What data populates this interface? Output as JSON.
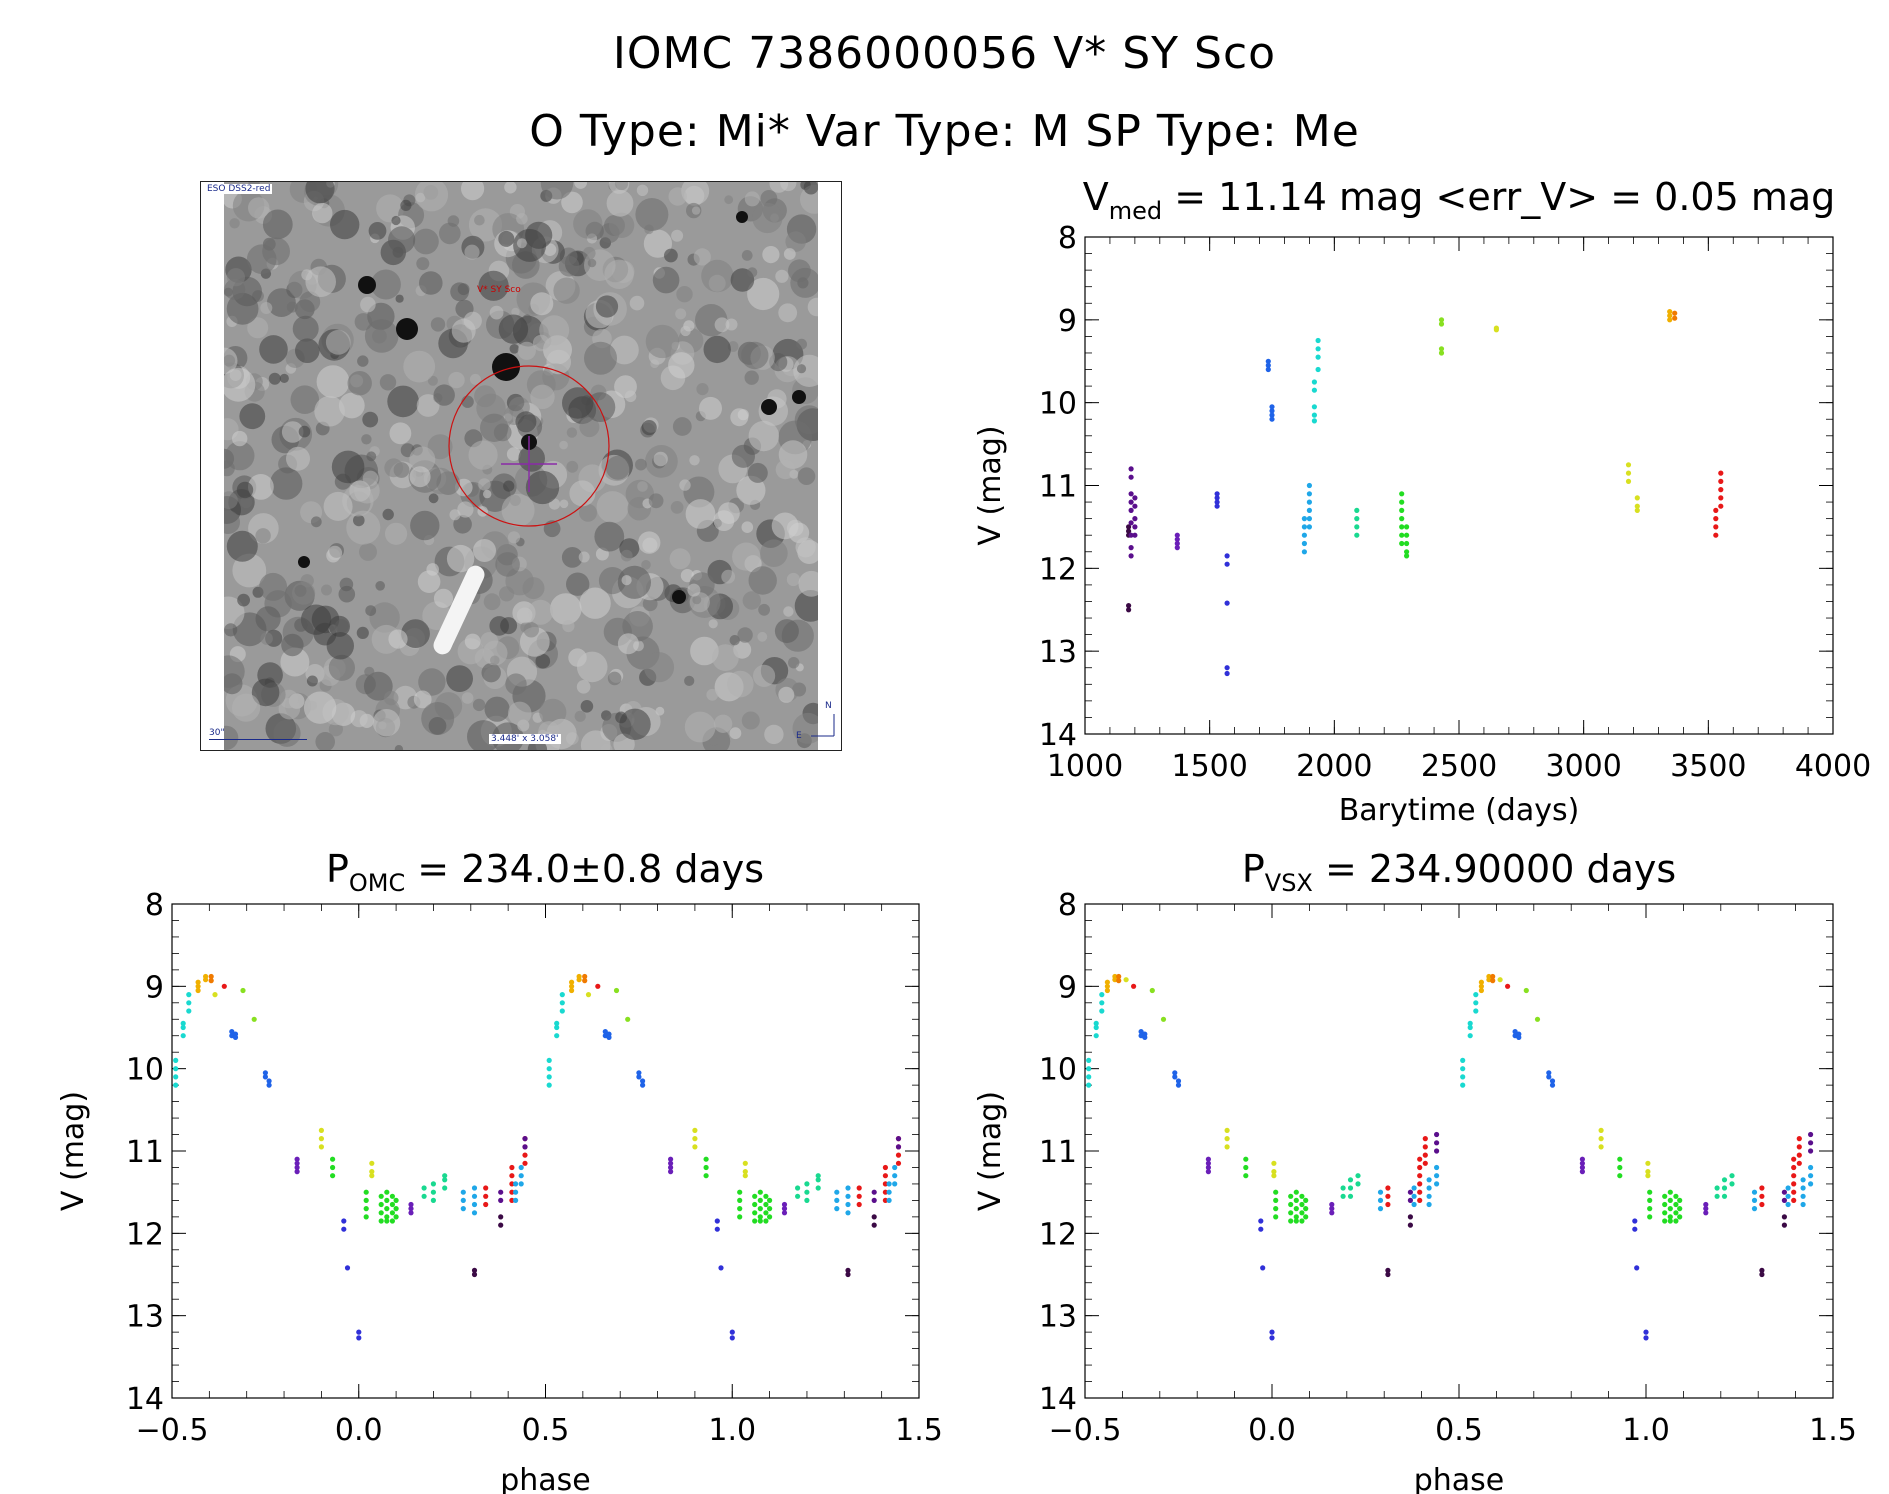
{
  "header": {
    "line1": "IOMC 7386000056   V* SY Sco",
    "line2": "O Type: Mi*  Var Type: M  SP Type: Me"
  },
  "finder": {
    "survey_label": "ESO DSS2-red",
    "target_label": "V* SY Sco",
    "scale_label": "30\"",
    "fov_label": "3.448' x 3.058'",
    "compass_n": "N",
    "compass_e": "E"
  },
  "colors": {
    "palette": [
      "#3b0a45",
      "#5a0f8c",
      "#6a1fb8",
      "#3030d8",
      "#1f63e8",
      "#1fa7e8",
      "#19d9d0",
      "#19d990",
      "#22dd22",
      "#88e020",
      "#d8e020",
      "#f0b000",
      "#f07a00",
      "#e81818"
    ]
  },
  "chart_data": [
    {
      "id": "lightcurve",
      "type": "scatter",
      "title": "V_med = 11.14 mag <err_V> = 0.05 mag",
      "title_parts": {
        "main": "V",
        "sub": "med",
        "rest": " = 11.14 mag <err_V> = 0.05 mag"
      },
      "xlabel": "Barytime (days)",
      "ylabel": "V (mag)",
      "xlim": [
        1000,
        4000
      ],
      "ylim": [
        8,
        14
      ],
      "y_inverted": true,
      "xticks": [
        1000,
        1500,
        2000,
        2500,
        3000,
        3500,
        4000
      ],
      "yticks": [
        8,
        9,
        10,
        11,
        12,
        13,
        14
      ],
      "groups": [
        {
          "c": 0,
          "x": 1175,
          "y": [
            11.5,
            11.55,
            11.6,
            12.45,
            12.5
          ]
        },
        {
          "c": 1,
          "x": 1185,
          "y": [
            10.8,
            10.9,
            11.1,
            11.2,
            11.3,
            11.45,
            11.6,
            11.75,
            11.85
          ]
        },
        {
          "c": 1,
          "x": 1200,
          "y": [
            11.15,
            11.25,
            11.4,
            11.5,
            11.6
          ]
        },
        {
          "c": 2,
          "x": 1370,
          "y": [
            11.6,
            11.65,
            11.7,
            11.75
          ]
        },
        {
          "c": 3,
          "x": 1530,
          "y": [
            11.1,
            11.15,
            11.2,
            11.25
          ]
        },
        {
          "c": 3,
          "x": 1570,
          "y": [
            11.85,
            11.95,
            12.42,
            13.2,
            13.27
          ]
        },
        {
          "c": 4,
          "x": 1735,
          "y": [
            9.5,
            9.55,
            9.6
          ]
        },
        {
          "c": 4,
          "x": 1750,
          "y": [
            10.05,
            10.1,
            10.15,
            10.2
          ]
        },
        {
          "c": 5,
          "x": 1880,
          "y": [
            11.4,
            11.5,
            11.6,
            11.7,
            11.8
          ]
        },
        {
          "c": 5,
          "x": 1900,
          "y": [
            11.0,
            11.1,
            11.2,
            11.3,
            11.4,
            11.5
          ]
        },
        {
          "c": 6,
          "x": 1920,
          "y": [
            9.75,
            9.85,
            10.05,
            10.15,
            10.22
          ]
        },
        {
          "c": 6,
          "x": 1935,
          "y": [
            9.25,
            9.35,
            9.45,
            9.6
          ]
        },
        {
          "c": 7,
          "x": 2090,
          "y": [
            11.3,
            11.4,
            11.5,
            11.6
          ]
        },
        {
          "c": 8,
          "x": 2270,
          "y": [
            11.1,
            11.2,
            11.3,
            11.4,
            11.5,
            11.6,
            11.7
          ]
        },
        {
          "c": 8,
          "x": 2290,
          "y": [
            11.5,
            11.6,
            11.7,
            11.8,
            11.85
          ]
        },
        {
          "c": 9,
          "x": 2430,
          "y": [
            9.0,
            9.05,
            9.35,
            9.4
          ]
        },
        {
          "c": 10,
          "x": 2650,
          "y": [
            9.1,
            9.12
          ]
        },
        {
          "c": 10,
          "x": 3180,
          "y": [
            10.75,
            10.85,
            10.95
          ]
        },
        {
          "c": 10,
          "x": 3215,
          "y": [
            11.15,
            11.25,
            11.3
          ]
        },
        {
          "c": 11,
          "x": 3345,
          "y": [
            8.9,
            8.95,
            9.0
          ]
        },
        {
          "c": 12,
          "x": 3365,
          "y": [
            8.92,
            8.98
          ]
        },
        {
          "c": 13,
          "x": 3530,
          "y": [
            11.3,
            11.4,
            11.5,
            11.6
          ]
        },
        {
          "c": 13,
          "x": 3550,
          "y": [
            10.85,
            10.95,
            11.05,
            11.15,
            11.25
          ]
        }
      ]
    },
    {
      "id": "phase_omc",
      "type": "scatter",
      "title": "P_OMC = 234.0±0.8 days",
      "title_parts": {
        "main": "P",
        "sub": "OMC",
        "rest": " = 234.0±0.8 days"
      },
      "xlabel": "phase",
      "ylabel": "V (mag)",
      "xlim": [
        -0.5,
        1.5
      ],
      "ylim": [
        8,
        14
      ],
      "y_inverted": true,
      "xticks": [
        -0.5,
        0.0,
        0.5,
        1.0,
        1.5
      ],
      "xticklabels": [
        "−0.5",
        "0.0",
        "0.5",
        "1.0",
        "1.5"
      ],
      "yticks": [
        8,
        9,
        10,
        11,
        12,
        13,
        14
      ],
      "groups": [
        {
          "c": 6,
          "x": -0.49,
          "y": [
            9.9,
            10.0,
            10.1,
            10.2
          ]
        },
        {
          "c": 6,
          "x": -0.47,
          "y": [
            9.6,
            9.5,
            9.45
          ]
        },
        {
          "c": 6,
          "x": -0.455,
          "y": [
            9.3,
            9.2,
            9.1
          ]
        },
        {
          "c": 11,
          "x": -0.43,
          "y": [
            8.95,
            9.0,
            9.05
          ]
        },
        {
          "c": 11,
          "x": -0.41,
          "y": [
            8.88,
            8.92
          ]
        },
        {
          "c": 12,
          "x": -0.395,
          "y": [
            8.88,
            8.93
          ]
        },
        {
          "c": 10,
          "x": -0.385,
          "y": [
            9.1
          ]
        },
        {
          "c": 13,
          "x": -0.36,
          "y": [
            9.0
          ]
        },
        {
          "c": 4,
          "x": -0.34,
          "y": [
            9.55,
            9.6
          ]
        },
        {
          "c": 4,
          "x": -0.33,
          "y": [
            9.58,
            9.62
          ]
        },
        {
          "c": 9,
          "x": -0.31,
          "y": [
            9.05
          ]
        },
        {
          "c": 9,
          "x": -0.28,
          "y": [
            9.4
          ]
        },
        {
          "c": 4,
          "x": -0.25,
          "y": [
            10.05,
            10.1
          ]
        },
        {
          "c": 4,
          "x": -0.24,
          "y": [
            10.15,
            10.2
          ]
        },
        {
          "c": 2,
          "x": -0.165,
          "y": [
            11.1,
            11.15,
            11.2,
            11.25
          ]
        },
        {
          "c": 10,
          "x": -0.1,
          "y": [
            10.75,
            10.85,
            10.95
          ]
        },
        {
          "c": 8,
          "x": -0.07,
          "y": [
            11.1,
            11.2,
            11.3
          ]
        },
        {
          "c": 3,
          "x": -0.04,
          "y": [
            11.85,
            11.95
          ]
        },
        {
          "c": 3,
          "x": -0.03,
          "y": [
            12.42
          ]
        },
        {
          "c": 3,
          "x": 0.0,
          "y": [
            13.2,
            13.27
          ]
        },
        {
          "c": 8,
          "x": 0.02,
          "y": [
            11.5,
            11.6,
            11.7,
            11.8
          ]
        },
        {
          "c": 10,
          "x": 0.035,
          "y": [
            11.15,
            11.25,
            11.3
          ]
        },
        {
          "c": 8,
          "x": 0.06,
          "y": [
            11.55,
            11.65,
            11.75,
            11.85
          ]
        },
        {
          "c": 8,
          "x": 0.075,
          "y": [
            11.5,
            11.6,
            11.7,
            11.8,
            11.85
          ]
        },
        {
          "c": 8,
          "x": 0.09,
          "y": [
            11.55,
            11.65,
            11.75,
            11.85
          ]
        },
        {
          "c": 8,
          "x": 0.1,
          "y": [
            11.6,
            11.7,
            11.8
          ]
        },
        {
          "c": 2,
          "x": 0.14,
          "y": [
            11.65,
            11.7,
            11.75
          ]
        },
        {
          "c": 7,
          "x": 0.175,
          "y": [
            11.45,
            11.55
          ]
        },
        {
          "c": 7,
          "x": 0.2,
          "y": [
            11.4,
            11.5,
            11.6
          ]
        },
        {
          "c": 7,
          "x": 0.23,
          "y": [
            11.3,
            11.35,
            11.45
          ]
        },
        {
          "c": 0,
          "x": 0.31,
          "y": [
            12.45,
            12.5
          ]
        },
        {
          "c": 5,
          "x": 0.28,
          "y": [
            11.5,
            11.6,
            11.7
          ]
        },
        {
          "c": 5,
          "x": 0.31,
          "y": [
            11.45,
            11.55,
            11.65,
            11.75
          ]
        },
        {
          "c": 13,
          "x": 0.34,
          "y": [
            11.45,
            11.55,
            11.65
          ]
        },
        {
          "c": 0,
          "x": 0.38,
          "y": [
            11.8,
            11.9
          ]
        },
        {
          "c": 1,
          "x": 0.38,
          "y": [
            11.5,
            11.6
          ]
        },
        {
          "c": 13,
          "x": 0.41,
          "y": [
            11.2,
            11.3,
            11.4,
            11.5,
            11.6
          ]
        },
        {
          "c": 5,
          "x": 0.42,
          "y": [
            11.4,
            11.5,
            11.6
          ]
        },
        {
          "c": 5,
          "x": 0.435,
          "y": [
            11.2,
            11.3,
            11.4
          ]
        },
        {
          "c": 13,
          "x": 0.445,
          "y": [
            10.85,
            10.95,
            11.05,
            11.15
          ]
        },
        {
          "c": 1,
          "x": 0.445,
          "y": [
            10.85,
            10.95
          ]
        }
      ],
      "repeat_offset": 1.0
    },
    {
      "id": "phase_vsx",
      "type": "scatter",
      "title": "P_VSX = 234.90000 days",
      "title_parts": {
        "main": "P",
        "sub": "VSX",
        "rest": " = 234.90000 days"
      },
      "xlabel": "phase",
      "ylabel": "V (mag)",
      "xlim": [
        -0.5,
        1.5
      ],
      "ylim": [
        8,
        14
      ],
      "y_inverted": true,
      "xticks": [
        -0.5,
        0.0,
        0.5,
        1.0,
        1.5
      ],
      "xticklabels": [
        "−0.5",
        "0.0",
        "0.5",
        "1.0",
        "1.5"
      ],
      "yticks": [
        8,
        9,
        10,
        11,
        12,
        13,
        14
      ],
      "groups": [
        {
          "c": 6,
          "x": -0.49,
          "y": [
            9.9,
            10.0,
            10.1,
            10.2
          ]
        },
        {
          "c": 6,
          "x": -0.47,
          "y": [
            9.6,
            9.5,
            9.45
          ]
        },
        {
          "c": 6,
          "x": -0.455,
          "y": [
            9.3,
            9.2,
            9.1
          ]
        },
        {
          "c": 11,
          "x": -0.44,
          "y": [
            8.95,
            9.0,
            9.05
          ]
        },
        {
          "c": 11,
          "x": -0.42,
          "y": [
            8.88,
            8.92
          ]
        },
        {
          "c": 12,
          "x": -0.41,
          "y": [
            8.88,
            8.93
          ]
        },
        {
          "c": 10,
          "x": -0.39,
          "y": [
            8.92
          ]
        },
        {
          "c": 13,
          "x": -0.37,
          "y": [
            9.0
          ]
        },
        {
          "c": 4,
          "x": -0.35,
          "y": [
            9.55,
            9.6
          ]
        },
        {
          "c": 4,
          "x": -0.34,
          "y": [
            9.58,
            9.62
          ]
        },
        {
          "c": 9,
          "x": -0.32,
          "y": [
            9.05
          ]
        },
        {
          "c": 9,
          "x": -0.29,
          "y": [
            9.4
          ]
        },
        {
          "c": 4,
          "x": -0.26,
          "y": [
            10.05,
            10.1
          ]
        },
        {
          "c": 4,
          "x": -0.25,
          "y": [
            10.15,
            10.2
          ]
        },
        {
          "c": 2,
          "x": -0.17,
          "y": [
            11.1,
            11.15,
            11.2,
            11.25
          ]
        },
        {
          "c": 10,
          "x": -0.12,
          "y": [
            10.75,
            10.85,
            10.95
          ]
        },
        {
          "c": 8,
          "x": -0.07,
          "y": [
            11.1,
            11.2,
            11.3
          ]
        },
        {
          "c": 3,
          "x": -0.03,
          "y": [
            11.85,
            11.95
          ]
        },
        {
          "c": 3,
          "x": -0.025,
          "y": [
            12.42
          ]
        },
        {
          "c": 3,
          "x": 0.0,
          "y": [
            13.2,
            13.27
          ]
        },
        {
          "c": 8,
          "x": 0.01,
          "y": [
            11.5,
            11.6,
            11.7,
            11.8
          ]
        },
        {
          "c": 10,
          "x": 0.005,
          "y": [
            11.15,
            11.25,
            11.3
          ]
        },
        {
          "c": 8,
          "x": 0.05,
          "y": [
            11.55,
            11.65,
            11.75,
            11.85
          ]
        },
        {
          "c": 8,
          "x": 0.065,
          "y": [
            11.5,
            11.6,
            11.7,
            11.8,
            11.85
          ]
        },
        {
          "c": 8,
          "x": 0.08,
          "y": [
            11.55,
            11.65,
            11.75,
            11.85
          ]
        },
        {
          "c": 8,
          "x": 0.09,
          "y": [
            11.6,
            11.7,
            11.8
          ]
        },
        {
          "c": 2,
          "x": 0.16,
          "y": [
            11.65,
            11.7,
            11.75
          ]
        },
        {
          "c": 7,
          "x": 0.19,
          "y": [
            11.45,
            11.55
          ]
        },
        {
          "c": 7,
          "x": 0.21,
          "y": [
            11.35,
            11.45,
            11.55
          ]
        },
        {
          "c": 7,
          "x": 0.23,
          "y": [
            11.3,
            11.4
          ]
        },
        {
          "c": 0,
          "x": 0.31,
          "y": [
            12.45,
            12.5
          ]
        },
        {
          "c": 5,
          "x": 0.29,
          "y": [
            11.5,
            11.6,
            11.7
          ]
        },
        {
          "c": 13,
          "x": 0.31,
          "y": [
            11.45,
            11.55,
            11.65
          ]
        },
        {
          "c": 0,
          "x": 0.37,
          "y": [
            11.8,
            11.9
          ]
        },
        {
          "c": 1,
          "x": 0.37,
          "y": [
            11.5,
            11.6
          ]
        },
        {
          "c": 5,
          "x": 0.38,
          "y": [
            11.45,
            11.55,
            11.65
          ]
        },
        {
          "c": 13,
          "x": 0.395,
          "y": [
            11.1,
            11.2,
            11.3,
            11.4,
            11.5,
            11.6
          ]
        },
        {
          "c": 13,
          "x": 0.41,
          "y": [
            10.85,
            10.95,
            11.05,
            11.15
          ]
        },
        {
          "c": 5,
          "x": 0.42,
          "y": [
            11.35,
            11.45,
            11.55,
            11.65
          ]
        },
        {
          "c": 5,
          "x": 0.44,
          "y": [
            11.2,
            11.3,
            11.4
          ]
        },
        {
          "c": 1,
          "x": 0.44,
          "y": [
            10.8,
            10.9,
            11.0
          ]
        }
      ],
      "repeat_offset": 1.0
    }
  ]
}
